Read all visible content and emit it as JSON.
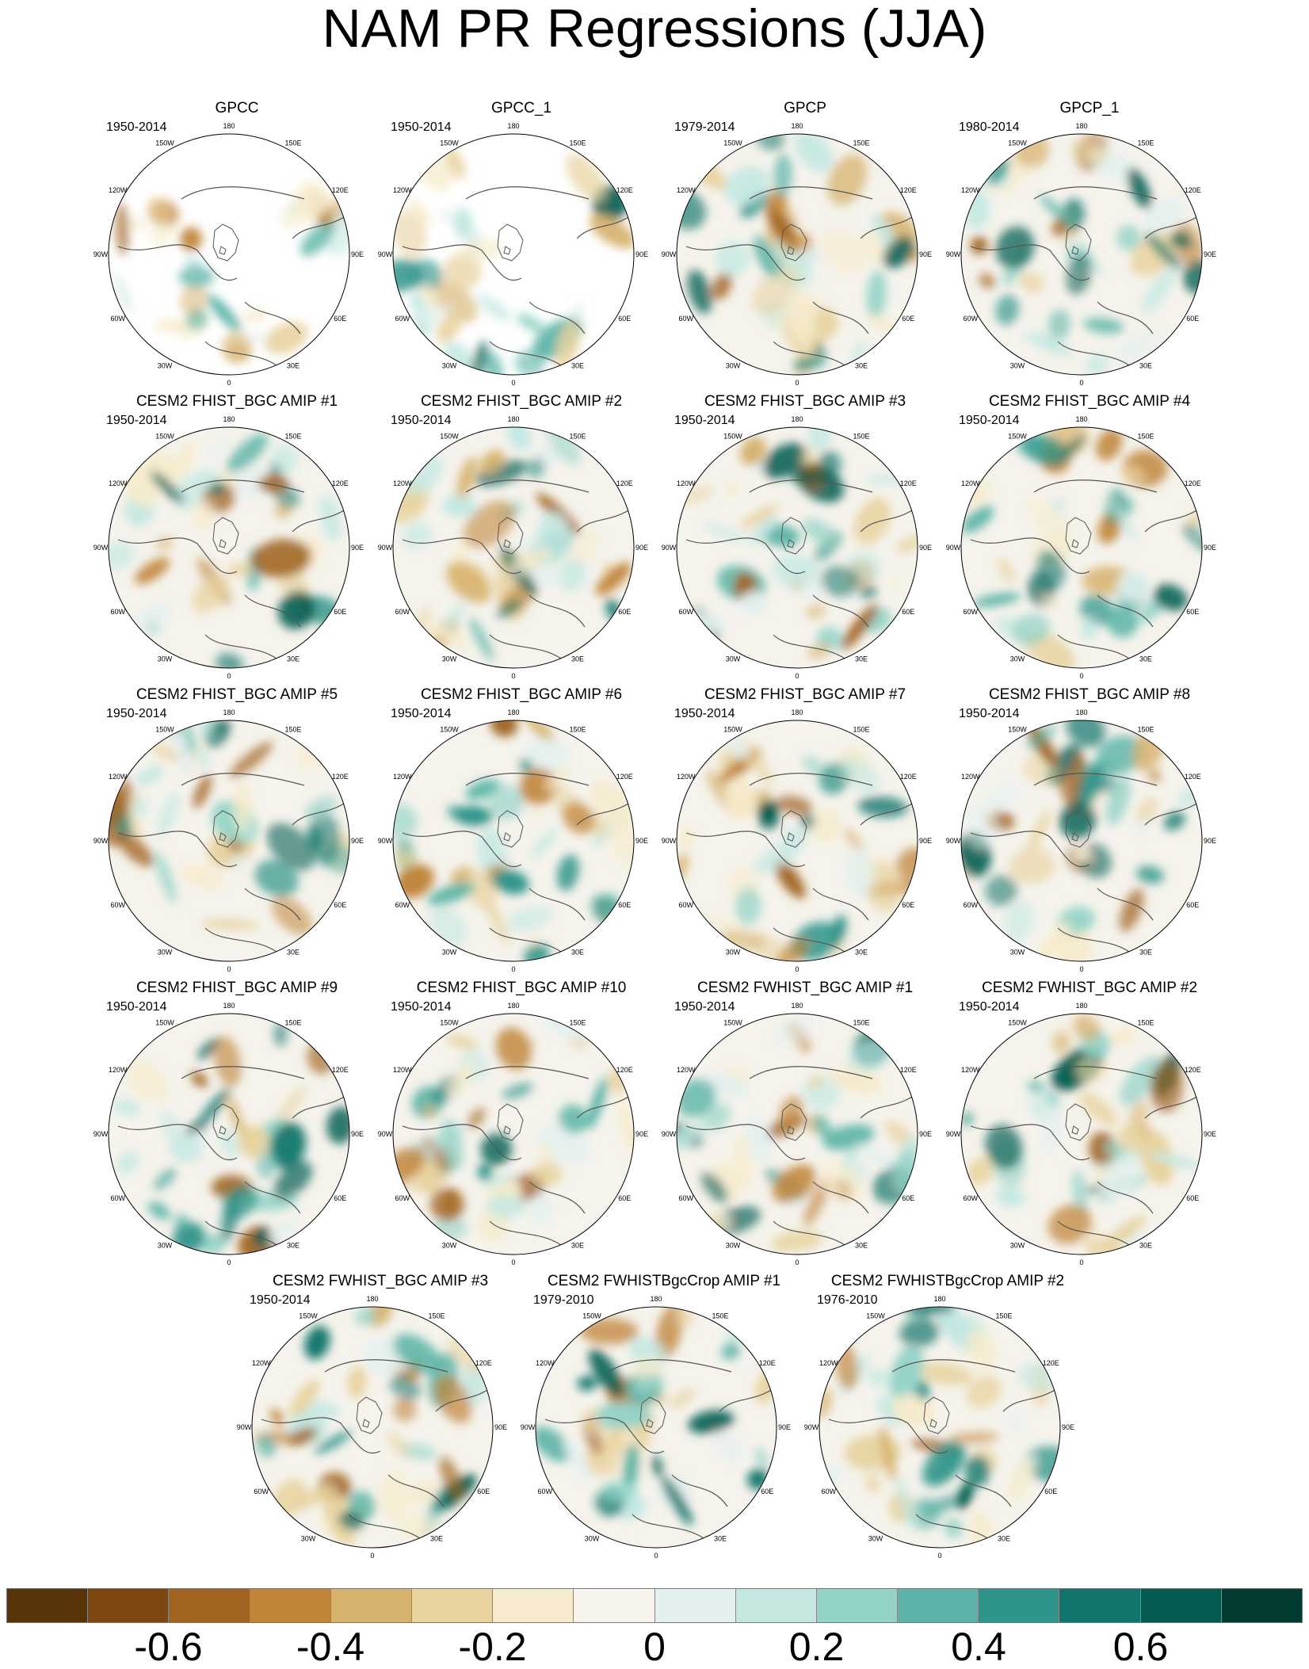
{
  "title": "NAM PR Regressions (JJA)",
  "longitude_labels": [
    "180",
    "150E",
    "120E",
    "90E",
    "60E",
    "30E",
    "0",
    "30W",
    "60W",
    "90W",
    "120W",
    "150W"
  ],
  "panels": [
    {
      "title": "GPCC",
      "years": "1950-2014"
    },
    {
      "title": "GPCC_1",
      "years": "1950-2014"
    },
    {
      "title": "GPCP",
      "years": "1979-2014"
    },
    {
      "title": "GPCP_1",
      "years": "1980-2014"
    },
    {
      "title": "CESM2 FHIST_BGC AMIP #1",
      "years": "1950-2014"
    },
    {
      "title": "CESM2 FHIST_BGC AMIP #2",
      "years": "1950-2014"
    },
    {
      "title": "CESM2 FHIST_BGC AMIP #3",
      "years": "1950-2014"
    },
    {
      "title": "CESM2 FHIST_BGC AMIP #4",
      "years": "1950-2014"
    },
    {
      "title": "CESM2 FHIST_BGC AMIP #5",
      "years": "1950-2014"
    },
    {
      "title": "CESM2 FHIST_BGC AMIP #6",
      "years": "1950-2014"
    },
    {
      "title": "CESM2 FHIST_BGC AMIP #7",
      "years": "1950-2014"
    },
    {
      "title": "CESM2 FHIST_BGC AMIP #8",
      "years": "1950-2014"
    },
    {
      "title": "CESM2 FHIST_BGC AMIP #9",
      "years": "1950-2014"
    },
    {
      "title": "CESM2 FHIST_BGC AMIP #10",
      "years": "1950-2014"
    },
    {
      "title": "CESM2 FWHIST_BGC AMIP #1",
      "years": "1950-2014"
    },
    {
      "title": "CESM2 FWHIST_BGC AMIP #2",
      "years": "1950-2014"
    },
    {
      "title": "CESM2 FWHIST_BGC AMIP #3",
      "years": "1950-2014"
    },
    {
      "title": "CESM2 FWHISTBgcCrop AMIP #1",
      "years": "1979-2010"
    },
    {
      "title": "CESM2 FWHISTBgcCrop AMIP #2",
      "years": "1976-2010"
    }
  ],
  "colorbar": {
    "colors": [
      "#5a3409",
      "#7d470f",
      "#a16420",
      "#c1853a",
      "#d7b26d",
      "#e8d39f",
      "#f6ebcb",
      "#f5f3ec",
      "#e3f0ef",
      "#c3e8e2",
      "#93d3c7",
      "#5bb4a7",
      "#2f958a",
      "#11756b",
      "#045c50",
      "#013a30"
    ],
    "labels": [
      "-0.6",
      "-0.4",
      "-0.2",
      "0",
      "0.2",
      "0.4",
      "0.6"
    ]
  }
}
